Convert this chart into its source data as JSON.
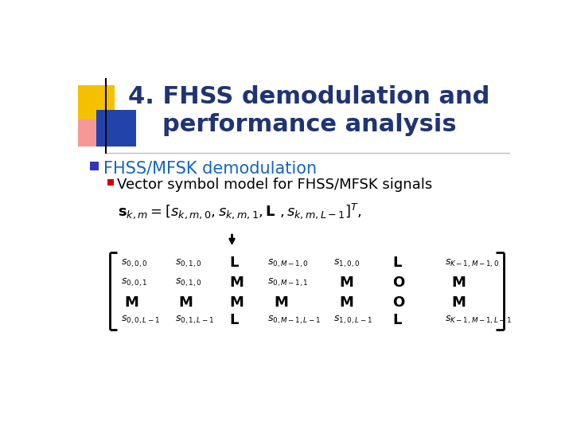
{
  "title_line1": "4. FHSS demodulation and",
  "title_line2": "performance analysis",
  "title_color": "#1F3472",
  "bullet1_text": "FHSS/MFSK demodulation",
  "bullet1_color": "#1565C0",
  "bullet2_text": "Vector symbol model for FHSS/MFSK signals",
  "bullet2_color": "#000000",
  "bg_color": "#FFFFFF",
  "formula_color": "#000000",
  "bullet1_marker_color": "#3333BB",
  "bullet2_marker_color": "#CC0000",
  "deco_yellow": "#F5C000",
  "deco_blue": "#2244AA",
  "deco_red": "#EE3333",
  "title_fontsize": 22,
  "bullet1_fontsize": 15,
  "bullet2_fontsize": 13
}
